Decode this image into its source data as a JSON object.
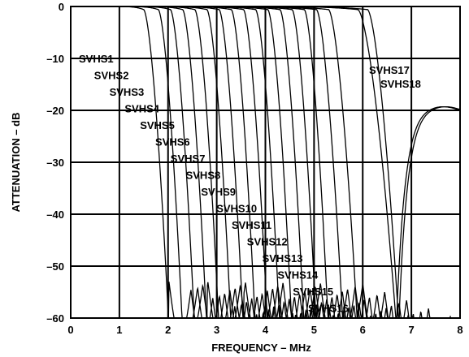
{
  "chart_data": {
    "type": "line",
    "title": "",
    "xlabel": "FREQUENCY – MHz",
    "ylabel": "ATTENUATION – dB",
    "xlim": [
      0,
      8
    ],
    "ylim": [
      -60,
      0
    ],
    "x_ticks": [
      "0",
      "1",
      "2",
      "3",
      "4",
      "5",
      "6",
      "7",
      "8"
    ],
    "y_ticks": [
      "0",
      "–10",
      "–20",
      "–30",
      "–40",
      "–50",
      "–60"
    ],
    "grid": true,
    "series": [
      {
        "name": "SVHS1",
        "cutoff_mhz": 1.5,
        "null_mhz": 2.02
      },
      {
        "name": "SVHS2",
        "cutoff_mhz": 1.8,
        "null_mhz": 2.3
      },
      {
        "name": "SVHS3",
        "cutoff_mhz": 2.05,
        "null_mhz": 2.55
      },
      {
        "name": "SVHS4",
        "cutoff_mhz": 2.3,
        "null_mhz": 2.8
      },
      {
        "name": "SVHS5",
        "cutoff_mhz": 2.55,
        "null_mhz": 3.05
      },
      {
        "name": "SVHS6",
        "cutoff_mhz": 2.8,
        "null_mhz": 3.3
      },
      {
        "name": "SVHS7",
        "cutoff_mhz": 3.05,
        "null_mhz": 3.55
      },
      {
        "name": "SVHS8",
        "cutoff_mhz": 3.3,
        "null_mhz": 3.8
      },
      {
        "name": "SVHS9",
        "cutoff_mhz": 3.55,
        "null_mhz": 4.05
      },
      {
        "name": "SVHS10",
        "cutoff_mhz": 3.8,
        "null_mhz": 4.3
      },
      {
        "name": "SVHS11",
        "cutoff_mhz": 4.05,
        "null_mhz": 4.55
      },
      {
        "name": "SVHS12",
        "cutoff_mhz": 4.3,
        "null_mhz": 4.8
      },
      {
        "name": "SVHS13",
        "cutoff_mhz": 4.55,
        "null_mhz": 5.05
      },
      {
        "name": "SVHS14",
        "cutoff_mhz": 4.8,
        "null_mhz": 5.3
      },
      {
        "name": "SVHS15",
        "cutoff_mhz": 5.05,
        "null_mhz": 5.6
      },
      {
        "name": "SVHS16",
        "cutoff_mhz": 5.3,
        "null_mhz": 5.9
      },
      {
        "name": "SVHS17",
        "cutoff_mhz": 5.9,
        "null_mhz": 6.7,
        "rebound_db": -19
      },
      {
        "name": "SVHS18",
        "cutoff_mhz": 6.1,
        "null_mhz": 6.75,
        "rebound_db": -19
      }
    ]
  }
}
